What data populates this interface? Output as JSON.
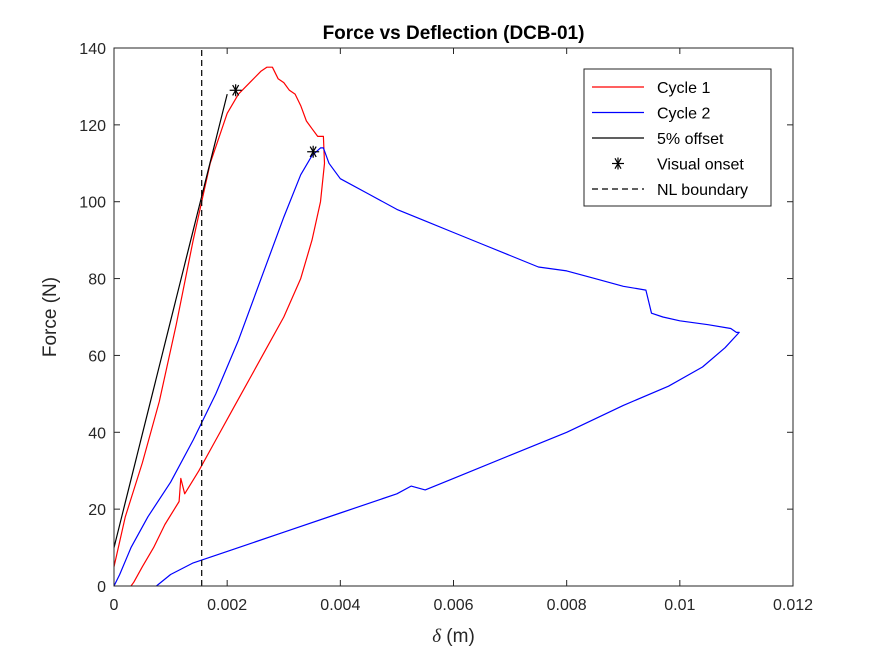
{
  "chart_data": {
    "type": "line",
    "title": "Force vs Deflection (DCB-01)",
    "xlabel_symbol": "δ",
    "xlabel_unit": " (m)",
    "ylabel": "Force (N)",
    "xlim": [
      0,
      0.012
    ],
    "ylim": [
      0,
      140
    ],
    "xticks": [
      0,
      0.002,
      0.004,
      0.006,
      0.008,
      0.01,
      0.012
    ],
    "xtick_labels": [
      "0",
      "0.002",
      "0.004",
      "0.006",
      "0.008",
      "0.01",
      "0.012"
    ],
    "yticks": [
      0,
      20,
      40,
      60,
      80,
      100,
      120,
      140
    ],
    "ytick_labels": [
      "0",
      "20",
      "40",
      "60",
      "80",
      "100",
      "120",
      "140"
    ],
    "grid": false,
    "legend_position": "top-right",
    "series": [
      {
        "name": "Cycle 1",
        "color": "#ff0000",
        "style": "solid",
        "x": [
          0.0,
          0.0002,
          0.0005,
          0.0008,
          0.0011,
          0.0014,
          0.0017,
          0.002,
          0.0022,
          0.0024,
          0.0026,
          0.0027,
          0.0028,
          0.0029,
          0.003,
          0.0031,
          0.0032,
          0.0033,
          0.0034,
          0.0035,
          0.0036,
          0.0037,
          0.00372,
          0.00365,
          0.0035,
          0.0033,
          0.003,
          0.0027,
          0.0024,
          0.0021,
          0.0018,
          0.0015,
          0.00125,
          0.00118,
          0.00115,
          0.0009,
          0.0007,
          0.0005,
          0.00035,
          0.0003
        ],
        "y": [
          5,
          18,
          32,
          48,
          68,
          90,
          110,
          123,
          128,
          131,
          134,
          135,
          135,
          132,
          131,
          129,
          128,
          125,
          121,
          119,
          117,
          117,
          110,
          100,
          90,
          80,
          70,
          62,
          54,
          46,
          38,
          30,
          24,
          28,
          22,
          16,
          10,
          5,
          1,
          0
        ]
      },
      {
        "name": "Cycle 2",
        "color": "#0000ff",
        "style": "solid",
        "x": [
          0.0,
          0.0001,
          0.0003,
          0.0006,
          0.001,
          0.0014,
          0.0018,
          0.0022,
          0.0026,
          0.003,
          0.0033,
          0.0035,
          0.00365,
          0.0037,
          0.0038,
          0.004,
          0.0045,
          0.005,
          0.0055,
          0.006,
          0.0065,
          0.007,
          0.0075,
          0.008,
          0.0085,
          0.009,
          0.0094,
          0.0095,
          0.0097,
          0.01,
          0.0105,
          0.0109,
          0.011,
          0.01105,
          0.0108,
          0.0104,
          0.0098,
          0.009,
          0.008,
          0.007,
          0.006,
          0.0055,
          0.00525,
          0.005,
          0.004,
          0.003,
          0.002,
          0.0014,
          0.001,
          0.00075
        ],
        "y": [
          0,
          3,
          10,
          18,
          27,
          38,
          50,
          64,
          80,
          96,
          107,
          112,
          114,
          114,
          110,
          106,
          102,
          98,
          95,
          92,
          89,
          86,
          83,
          82,
          80,
          78,
          77,
          71,
          70,
          69,
          68,
          67,
          66,
          66,
          62,
          57,
          52,
          47,
          40,
          34,
          28,
          25,
          26,
          24,
          19,
          14,
          9,
          6,
          3,
          0
        ]
      },
      {
        "name": "5% offset",
        "color": "#000000",
        "style": "solid",
        "x": [
          0.0,
          0.002
        ],
        "y": [
          10,
          128
        ]
      },
      {
        "name": "NL boundary",
        "color": "#000000",
        "style": "dashed",
        "x": [
          0.00155,
          0.00155
        ],
        "y": [
          0,
          140
        ]
      }
    ],
    "markers": {
      "name": "Visual onset",
      "symbol": "asterisk",
      "color": "#000000",
      "x": [
        0.00215,
        0.00352
      ],
      "y": [
        129,
        113
      ]
    }
  }
}
